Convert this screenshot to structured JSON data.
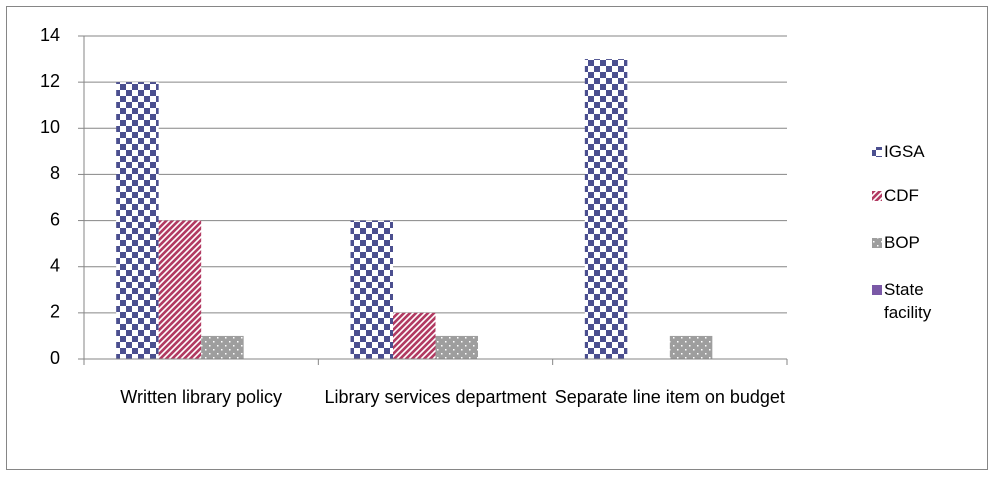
{
  "chart_data": {
    "type": "bar",
    "categories": [
      "Written library policy",
      "Library services department",
      "Separate line item on budget"
    ],
    "series": [
      {
        "name": "IGSA",
        "color": "#4b4f8f",
        "pattern": "checker",
        "values": [
          12,
          6,
          13
        ]
      },
      {
        "name": "CDF",
        "color": "#b23a62",
        "pattern": "diagonal",
        "values": [
          6,
          2,
          0
        ]
      },
      {
        "name": "BOP",
        "color": "#9e9e9e",
        "pattern": "dots",
        "values": [
          1,
          1,
          1
        ]
      },
      {
        "name": "State facility",
        "color": "#7a58a6",
        "pattern": "solid",
        "values": [
          0,
          0,
          0
        ]
      }
    ],
    "ylim": [
      0,
      14
    ],
    "yticks": [
      0,
      2,
      4,
      6,
      8,
      10,
      12,
      14
    ],
    "grid": true,
    "legend": "right"
  }
}
